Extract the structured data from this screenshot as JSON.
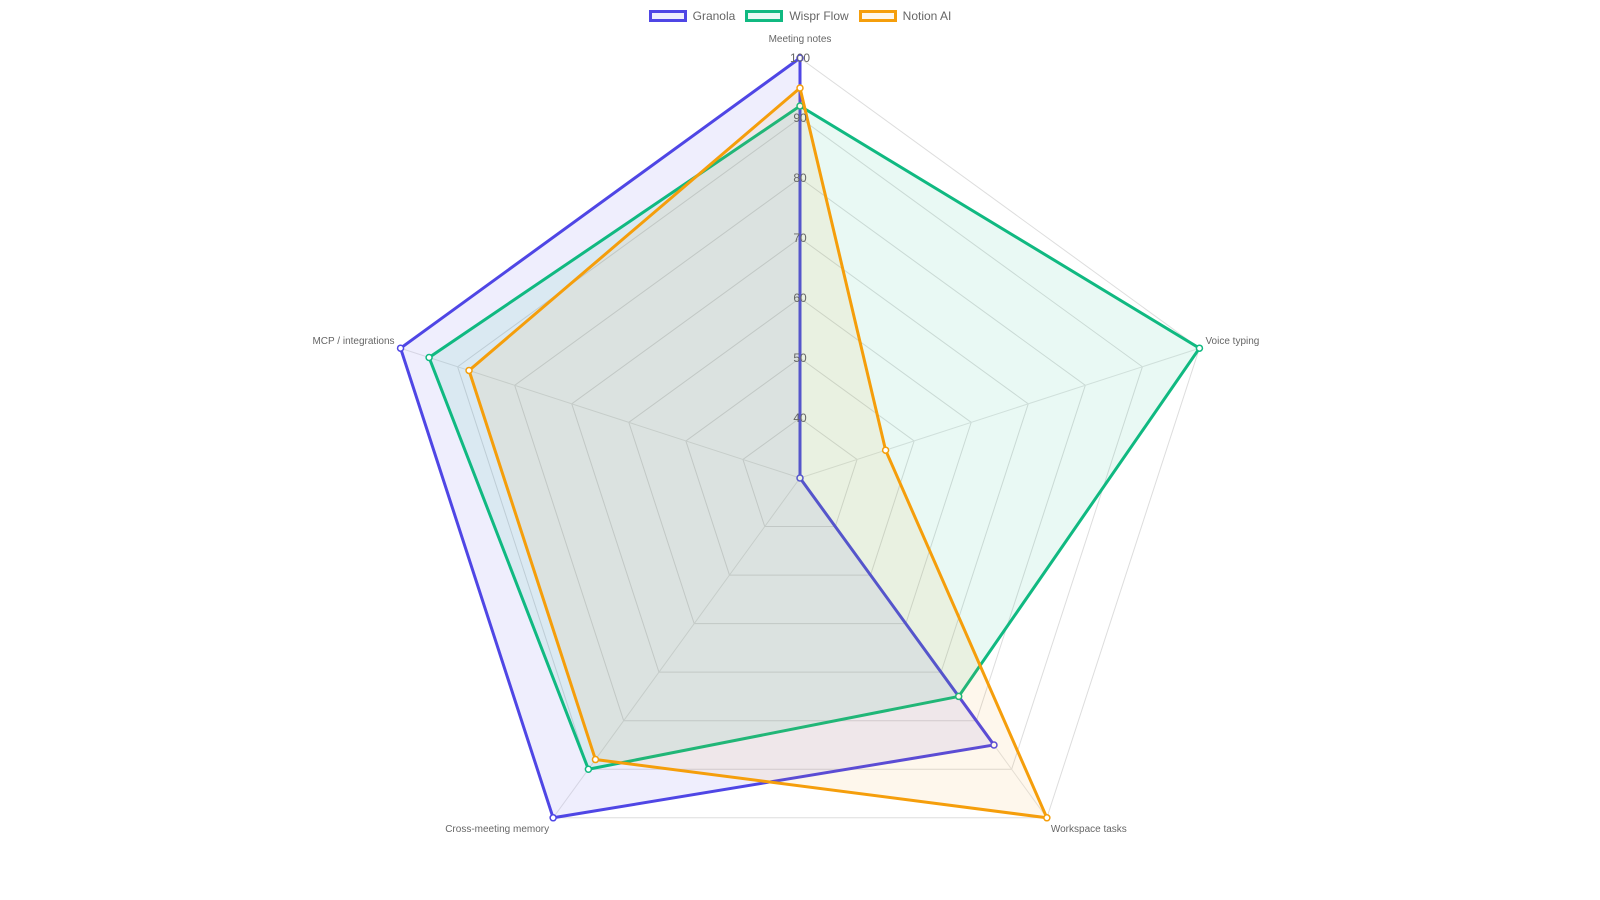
{
  "chart_data": {
    "type": "radar",
    "axes": [
      "Meeting notes",
      "Voice typing",
      "Workspace tasks",
      "Cross-meeting memory",
      "MCP / integrations"
    ],
    "r_range": [
      30,
      100
    ],
    "ticks": [
      40,
      50,
      60,
      70,
      80,
      90,
      100
    ],
    "grid": true,
    "legend_position": "top",
    "series": [
      {
        "name": "Granola",
        "values": [
          100,
          30,
          85,
          100,
          100
        ],
        "color": "#4f46e5",
        "fill": "rgba(79,70,229,0.09)"
      },
      {
        "name": "Wispr Flow",
        "values": [
          92,
          100,
          75,
          90,
          95
        ],
        "color": "#10b981",
        "fill": "rgba(16,185,129,0.09)"
      },
      {
        "name": "Notion AI",
        "values": [
          95,
          45,
          100,
          88,
          88
        ],
        "color": "#f59e0b",
        "fill": "rgba(245,158,11,0.08)"
      }
    ]
  }
}
